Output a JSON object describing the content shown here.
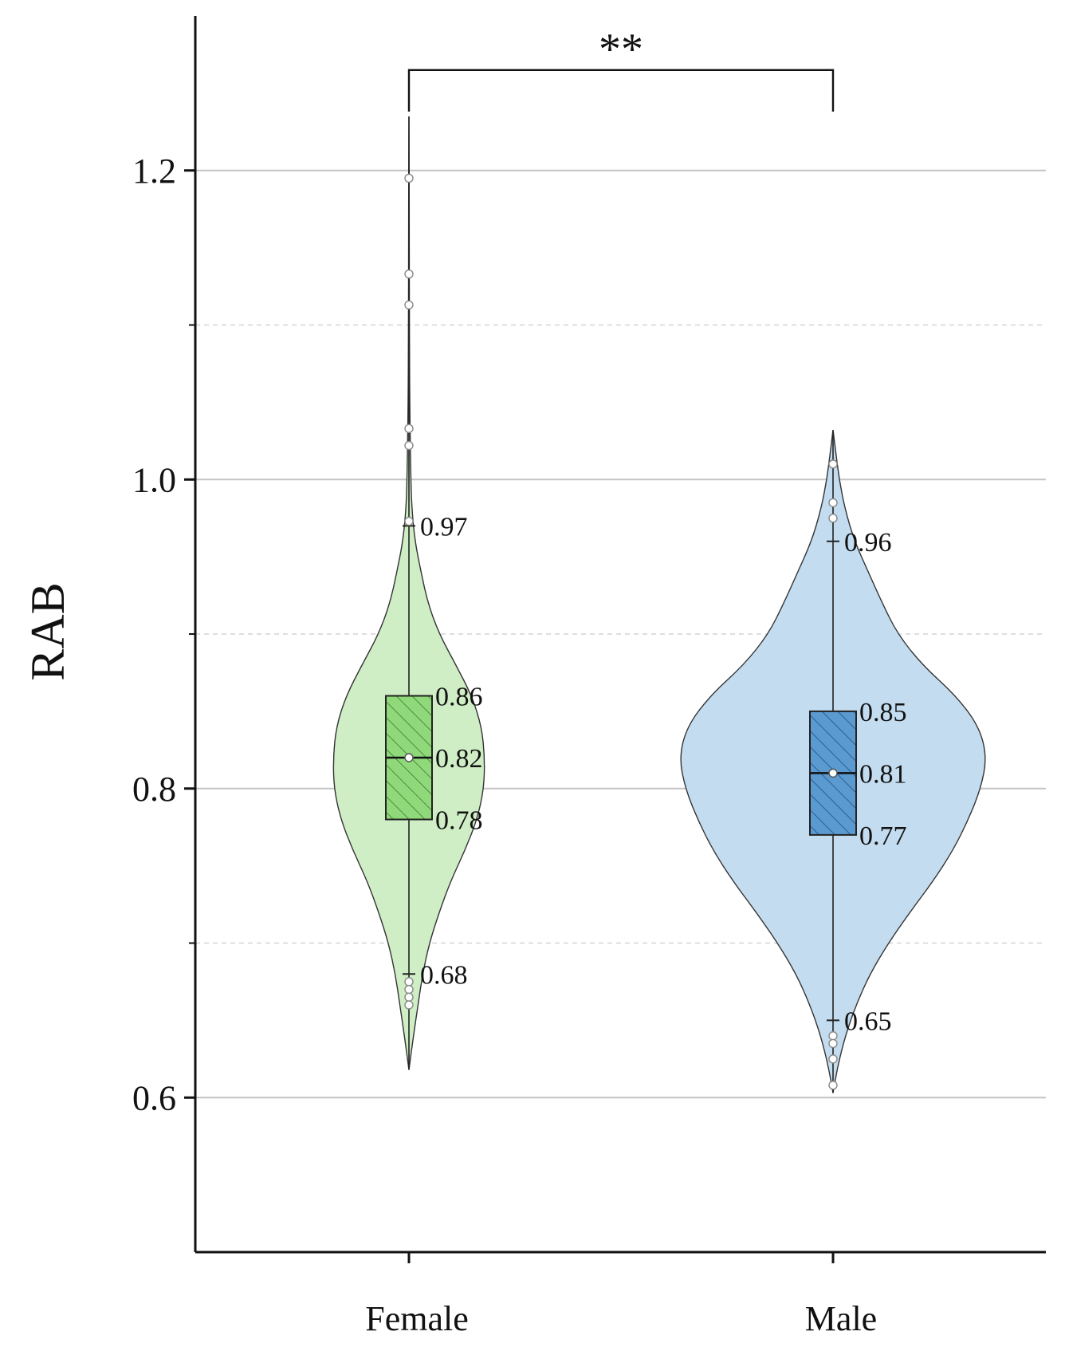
{
  "chart_data": {
    "type": "violin",
    "ylabel": "RAB",
    "xlabel": "",
    "ylim": [
      0.5,
      1.3
    ],
    "yticks": [
      0.6,
      0.8,
      1.0,
      1.2
    ],
    "ytick_labels": [
      "0.6",
      "0.8",
      "1.0",
      "1.2"
    ],
    "minor_gridlines": [
      0.7,
      0.9,
      1.1
    ],
    "grid": true,
    "categories": [
      "Female",
      "Male"
    ],
    "series": [
      {
        "category": "Female",
        "color": "#cfeec6",
        "box_color": "#8fd97a",
        "q1": 0.78,
        "median": 0.82,
        "q3": 0.86,
        "mean": 0.82,
        "whisker_low": 0.68,
        "whisker_high": 0.97,
        "labels": {
          "q3": "0.86",
          "median": "0.82",
          "q1": "0.78",
          "whisker_high": "0.97",
          "whisker_low": "0.68"
        },
        "outliers": [
          1.195,
          1.133,
          1.113,
          1.033,
          1.022,
          0.973,
          0.675,
          0.67,
          0.665,
          0.66
        ],
        "violin_range": [
          0.618,
          1.235
        ],
        "density": [
          [
            0.618,
            0.0
          ],
          [
            0.64,
            0.06
          ],
          [
            0.66,
            0.12
          ],
          [
            0.68,
            0.18
          ],
          [
            0.7,
            0.27
          ],
          [
            0.72,
            0.4
          ],
          [
            0.74,
            0.55
          ],
          [
            0.76,
            0.74
          ],
          [
            0.78,
            0.9
          ],
          [
            0.8,
            0.99
          ],
          [
            0.82,
            1.0
          ],
          [
            0.84,
            0.96
          ],
          [
            0.86,
            0.83
          ],
          [
            0.88,
            0.62
          ],
          [
            0.9,
            0.4
          ],
          [
            0.92,
            0.25
          ],
          [
            0.94,
            0.16
          ],
          [
            0.96,
            0.08
          ],
          [
            0.98,
            0.04
          ],
          [
            1.0,
            0.025
          ],
          [
            1.05,
            0.01
          ],
          [
            1.1,
            0.006
          ],
          [
            1.15,
            0.004
          ],
          [
            1.2,
            0.003
          ],
          [
            1.235,
            0.0
          ]
        ]
      },
      {
        "category": "Male",
        "color": "#c3dcf0",
        "box_color": "#5b9ad0",
        "q1": 0.77,
        "median": 0.81,
        "q3": 0.85,
        "mean": 0.81,
        "whisker_low": 0.65,
        "whisker_high": 0.96,
        "labels": {
          "q3": "0.85",
          "median": "0.81",
          "q1": "0.77",
          "whisker_high": "0.96",
          "whisker_low": "0.65"
        },
        "outliers": [
          1.01,
          0.985,
          0.975,
          0.64,
          0.635,
          0.625,
          0.608
        ],
        "violin_range": [
          0.603,
          1.032
        ],
        "density": [
          [
            0.603,
            0.0
          ],
          [
            0.62,
            0.03
          ],
          [
            0.64,
            0.08
          ],
          [
            0.66,
            0.15
          ],
          [
            0.68,
            0.24
          ],
          [
            0.7,
            0.36
          ],
          [
            0.72,
            0.5
          ],
          [
            0.74,
            0.65
          ],
          [
            0.76,
            0.78
          ],
          [
            0.78,
            0.88
          ],
          [
            0.8,
            0.96
          ],
          [
            0.82,
            1.0
          ],
          [
            0.84,
            0.95
          ],
          [
            0.86,
            0.8
          ],
          [
            0.88,
            0.58
          ],
          [
            0.9,
            0.42
          ],
          [
            0.92,
            0.32
          ],
          [
            0.94,
            0.23
          ],
          [
            0.96,
            0.14
          ],
          [
            0.98,
            0.08
          ],
          [
            1.0,
            0.04
          ],
          [
            1.02,
            0.015
          ],
          [
            1.032,
            0.0
          ]
        ]
      }
    ],
    "significance": {
      "label": "**",
      "between": [
        "Female",
        "Male"
      ],
      "y": 1.265
    }
  }
}
